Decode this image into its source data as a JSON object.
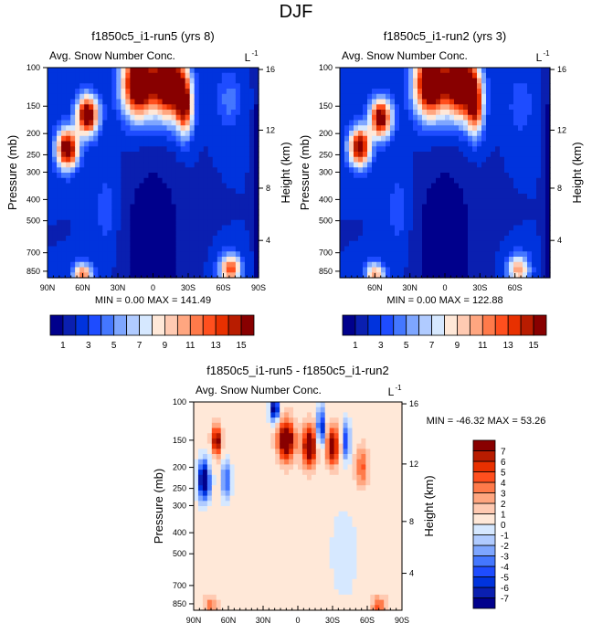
{
  "title": "DJF",
  "chart_data": [
    {
      "type": "heatmap",
      "title": "f1850c5_i1-run5 (yrs 8)",
      "subtitle": "Avg. Snow Number Conc.",
      "units": "L",
      "units_exp": "-1",
      "ylabel": "Pressure (mb)",
      "ylabel_right": "Height (km)",
      "xlim": [
        90,
        -90
      ],
      "ylim": [
        100,
        910
      ],
      "xticks": [
        {
          "v": 90,
          "l": "90N"
        },
        {
          "v": 60,
          "l": "60N"
        },
        {
          "v": 30,
          "l": "30N"
        },
        {
          "v": 0,
          "l": "0"
        },
        {
          "v": -30,
          "l": "30S"
        },
        {
          "v": -60,
          "l": "60S"
        },
        {
          "v": -90,
          "l": "90S"
        }
      ],
      "yticks": [
        100,
        150,
        200,
        250,
        300,
        400,
        500,
        700,
        850
      ],
      "height_ticks": [
        {
          "v": 16,
          "p": 102
        },
        {
          "v": 12,
          "p": 193
        },
        {
          "v": 8,
          "p": 355
        },
        {
          "v": 4,
          "p": 615
        }
      ],
      "min_label": "MIN =   0.00  MAX = 141.49",
      "levels": [
        1,
        2,
        3,
        4,
        5,
        6,
        7,
        8,
        9,
        10,
        11,
        12,
        13,
        14,
        15
      ],
      "colorbar_labels": [
        "1",
        "3",
        "5",
        "7",
        "9",
        "11",
        "13",
        "15"
      ],
      "base": 2,
      "approx_features": [
        {
          "lat": 73,
          "p": 235,
          "amp": 16,
          "slat": 9,
          "slp": 0.2
        },
        {
          "lat": 56,
          "p": 165,
          "amp": 16,
          "slat": 9,
          "slp": 0.2
        },
        {
          "lat": 12,
          "p": 118,
          "amp": 18,
          "slat": 14,
          "slp": 0.35
        },
        {
          "lat": -14,
          "p": 118,
          "amp": 18,
          "slat": 13,
          "slp": 0.35
        },
        {
          "lat": -27,
          "p": 150,
          "amp": 12,
          "slat": 7,
          "slp": 0.3
        },
        {
          "lat": 0,
          "p": 650,
          "amp": -2.5,
          "slat": 22,
          "slp": 0.8
        },
        {
          "lat": 60,
          "p": 880,
          "amp": 10,
          "slat": 8,
          "slp": 0.12
        },
        {
          "lat": -66,
          "p": 830,
          "amp": 11,
          "slat": 9,
          "slp": 0.15
        },
        {
          "lat": -65,
          "p": 140,
          "amp": 2.5,
          "slat": 10,
          "slp": 0.3
        },
        {
          "lat": -92,
          "p": 400,
          "amp": -3,
          "slat": 4,
          "slp": 3
        },
        {
          "lat": 40,
          "p": 450,
          "amp": 1.5,
          "slat": 10,
          "slp": 0.5
        }
      ]
    },
    {
      "type": "heatmap",
      "title": "f1850c5_i1-run2 (yrs 3)",
      "subtitle": "Avg. Snow Number Conc.",
      "units": "L",
      "units_exp": "-1",
      "ylabel": "Pressure (mb)",
      "ylabel_right": "Height (km)",
      "xlim": [
        90,
        -90
      ],
      "ylim": [
        100,
        910
      ],
      "xticks": [
        {
          "v": 60,
          "l": "60N"
        },
        {
          "v": 30,
          "l": "30N"
        },
        {
          "v": 0,
          "l": "0"
        },
        {
          "v": -30,
          "l": "30S"
        },
        {
          "v": -60,
          "l": "60S"
        }
      ],
      "yticks": [
        100,
        150,
        200,
        250,
        300,
        400,
        500,
        700,
        850
      ],
      "height_ticks": [
        {
          "v": 16,
          "p": 102
        },
        {
          "v": 12,
          "p": 193
        },
        {
          "v": 8,
          "p": 355
        },
        {
          "v": 4,
          "p": 615
        }
      ],
      "min_label": "MIN =   0.00  MAX = 122.88",
      "levels": [
        1,
        2,
        3,
        4,
        5,
        6,
        7,
        8,
        9,
        10,
        11,
        12,
        13,
        14,
        15
      ],
      "colorbar_labels": [
        "1",
        "3",
        "5",
        "7",
        "9",
        "11",
        "13",
        "15"
      ],
      "base": 2,
      "approx_features": [
        {
          "lat": 73,
          "p": 230,
          "amp": 15,
          "slat": 9,
          "slp": 0.2
        },
        {
          "lat": 55,
          "p": 170,
          "amp": 15,
          "slat": 9,
          "slp": 0.2
        },
        {
          "lat": 12,
          "p": 118,
          "amp": 18,
          "slat": 14,
          "slp": 0.35
        },
        {
          "lat": -14,
          "p": 118,
          "amp": 18,
          "slat": 13,
          "slp": 0.35
        },
        {
          "lat": -26,
          "p": 150,
          "amp": 11,
          "slat": 7,
          "slp": 0.3
        },
        {
          "lat": 0,
          "p": 650,
          "amp": -2.5,
          "slat": 22,
          "slp": 0.8
        },
        {
          "lat": 60,
          "p": 880,
          "amp": 9,
          "slat": 8,
          "slp": 0.12
        },
        {
          "lat": -63,
          "p": 830,
          "amp": 9,
          "slat": 9,
          "slp": 0.15
        },
        {
          "lat": -65,
          "p": 150,
          "amp": 2,
          "slat": 10,
          "slp": 0.3
        },
        {
          "lat": -92,
          "p": 400,
          "amp": -3,
          "slat": 4,
          "slp": 3
        },
        {
          "lat": 40,
          "p": 450,
          "amp": 1.5,
          "slat": 10,
          "slp": 0.5
        }
      ]
    },
    {
      "type": "heatmap",
      "title": "f1850c5_i1-run5 - f1850c5_i1-run2",
      "subtitle": "Avg. Snow Number Conc.",
      "units": "L",
      "units_exp": "-1",
      "ylabel": "Pressure (mb)",
      "ylabel_right": "Height (km)",
      "xlim": [
        90,
        -90
      ],
      "ylim": [
        100,
        910
      ],
      "xticks": [
        {
          "v": 90,
          "l": "90N"
        },
        {
          "v": 60,
          "l": "60N"
        },
        {
          "v": 30,
          "l": "30N"
        },
        {
          "v": 0,
          "l": "0"
        },
        {
          "v": -30,
          "l": "30S"
        },
        {
          "v": -60,
          "l": "60S"
        },
        {
          "v": -90,
          "l": "90S"
        }
      ],
      "yticks": [
        100,
        150,
        200,
        250,
        300,
        400,
        500,
        700,
        850
      ],
      "height_ticks": [
        {
          "v": 16,
          "p": 102
        },
        {
          "v": 12,
          "p": 193
        },
        {
          "v": 8,
          "p": 355
        },
        {
          "v": 4,
          "p": 615
        }
      ],
      "min_label": "MIN = -46.32  MAX =  53.26",
      "levels": [
        -7,
        -6,
        -5,
        -4,
        -3,
        -2,
        -1,
        0,
        1,
        2,
        3,
        4,
        5,
        6,
        7
      ],
      "colorbar_labels": [
        "7",
        "6",
        "5",
        "4",
        "3",
        "2",
        "1",
        "0",
        "-1",
        "-2",
        "-3",
        "-4",
        "-5",
        "-6",
        "-7"
      ],
      "base": 0.5,
      "approx_features": [
        {
          "lat": 81,
          "p": 230,
          "amp": -10,
          "slat": 5,
          "slp": 0.2
        },
        {
          "lat": 70,
          "p": 150,
          "amp": 8,
          "slat": 4,
          "slp": 0.15
        },
        {
          "lat": 62,
          "p": 230,
          "amp": -5,
          "slat": 4,
          "slp": 0.2
        },
        {
          "lat": 20,
          "p": 108,
          "amp": -9,
          "slat": 4,
          "slp": 0.12
        },
        {
          "lat": 10,
          "p": 150,
          "amp": 10,
          "slat": 7,
          "slp": 0.2
        },
        {
          "lat": -10,
          "p": 160,
          "amp": 9,
          "slat": 6,
          "slp": 0.2
        },
        {
          "lat": -20,
          "p": 130,
          "amp": -8,
          "slat": 3,
          "slp": 0.2
        },
        {
          "lat": -30,
          "p": 160,
          "amp": 8,
          "slat": 5,
          "slp": 0.2
        },
        {
          "lat": -42,
          "p": 150,
          "amp": -6,
          "slat": 3,
          "slp": 0.2
        },
        {
          "lat": -55,
          "p": 200,
          "amp": 4,
          "slat": 5,
          "slp": 0.2
        },
        {
          "lat": -40,
          "p": 500,
          "amp": -0.9,
          "slat": 15,
          "slp": 0.6
        },
        {
          "lat": -70,
          "p": 870,
          "amp": 4,
          "slat": 6,
          "slp": 0.1
        },
        {
          "lat": 75,
          "p": 860,
          "amp": 3,
          "slat": 5,
          "slp": 0.1
        }
      ]
    }
  ],
  "colors": {
    "seq": [
      "#00008c",
      "#0a1fb0",
      "#0033dd",
      "#1e4cff",
      "#4477ff",
      "#7ea6ff",
      "#b0cbff",
      "#d6e8ff",
      "#ffe8d8",
      "#ffcab2",
      "#ffa680",
      "#ff7a4a",
      "#ff4f1e",
      "#e83000",
      "#b81c00",
      "#880000"
    ]
  }
}
